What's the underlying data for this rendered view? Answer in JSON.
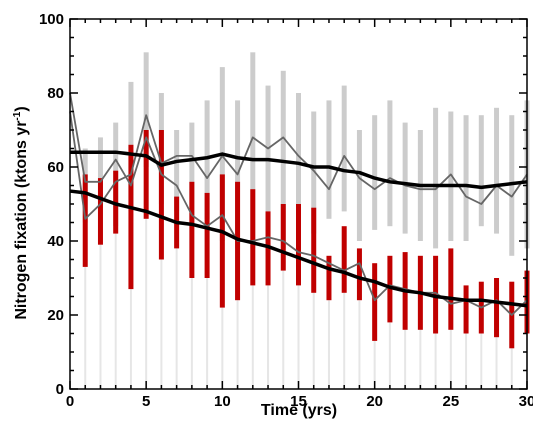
{
  "chart_data": {
    "type": "line",
    "xlabel": "Time (yrs)",
    "ylabel": "Nitrogen fixation (ktons yr",
    "ylabel_sup": "-1",
    "ylabel_close": ")",
    "xlim": [
      0,
      30
    ],
    "ylim": [
      0,
      100
    ],
    "xticks": [
      0,
      5,
      10,
      15,
      20,
      25,
      30
    ],
    "yticks": [
      0,
      20,
      40,
      60,
      80,
      100
    ],
    "xtick_labels": [
      "0",
      "5",
      "10",
      "15",
      "20",
      "25",
      "30"
    ],
    "ytick_labels": [
      "0",
      "20",
      "40",
      "60",
      "80",
      "100"
    ],
    "grid": false,
    "colors": {
      "upper_bars": "#cccccc",
      "lower_bars": "#c00000",
      "faint_bars": "#e6e6e6",
      "trend": "#000000",
      "realization": "#666666"
    },
    "series": [
      {
        "kind": "range-bars",
        "color": "#cccccc",
        "x": [
          1,
          2,
          3,
          4,
          5,
          6,
          7,
          8,
          9,
          10,
          11,
          12,
          13,
          14,
          15,
          16,
          17,
          18,
          19,
          20,
          21,
          22,
          23,
          24,
          25,
          26,
          27,
          28,
          29,
          30
        ],
        "low": [
          45,
          52,
          44,
          48,
          60,
          50,
          48,
          44,
          46,
          40,
          38,
          38,
          36,
          38,
          40,
          42,
          46,
          48,
          40,
          43,
          44,
          42,
          40,
          38,
          40,
          40,
          44,
          42,
          36,
          38
        ],
        "high": [
          65,
          68,
          72,
          83,
          91,
          80,
          70,
          72,
          78,
          87,
          78,
          91,
          82,
          86,
          80,
          75,
          78,
          82,
          70,
          74,
          78,
          72,
          70,
          76,
          75,
          74,
          74,
          76,
          74,
          78
        ]
      },
      {
        "kind": "range-bars",
        "color": "#e6e6e6",
        "x": [
          1,
          2,
          3,
          4,
          5,
          6,
          7,
          8,
          9,
          10,
          11,
          12,
          13,
          14,
          15,
          16,
          17,
          18,
          19,
          20,
          21,
          22,
          23,
          24,
          25,
          26,
          27,
          28,
          29,
          30
        ],
        "low": [
          0,
          0,
          0,
          0,
          0,
          0,
          0,
          0,
          0,
          0,
          0,
          0,
          0,
          0,
          0,
          0,
          0,
          0,
          0,
          0,
          0,
          0,
          0,
          0,
          0,
          0,
          0,
          0,
          0,
          0
        ],
        "high": [
          33,
          40,
          42,
          27,
          46,
          35,
          38,
          30,
          30,
          22,
          24,
          28,
          28,
          32,
          28,
          26,
          24,
          26,
          24,
          13,
          18,
          16,
          16,
          15,
          16,
          15,
          15,
          14,
          11,
          15
        ]
      },
      {
        "kind": "range-bars",
        "color": "#c00000",
        "x": [
          1,
          2,
          3,
          4,
          5,
          6,
          7,
          8,
          9,
          10,
          11,
          12,
          13,
          14,
          15,
          16,
          17,
          18,
          19,
          20,
          21,
          22,
          23,
          24,
          25,
          26,
          27,
          28,
          29,
          30
        ],
        "low": [
          33,
          39,
          42,
          27,
          46,
          35,
          38,
          30,
          30,
          22,
          24,
          28,
          28,
          32,
          28,
          26,
          24,
          26,
          24,
          13,
          18,
          16,
          16,
          15,
          16,
          15,
          15,
          14,
          11,
          15
        ],
        "high": [
          58,
          57,
          59,
          66,
          70,
          70,
          52,
          56,
          53,
          58,
          56,
          54,
          48,
          50,
          50,
          49,
          36,
          44,
          38,
          34,
          36,
          37,
          36,
          36,
          38,
          28,
          29,
          30,
          29,
          32
        ]
      },
      {
        "kind": "line",
        "color": "#666666",
        "x": [
          0,
          1,
          2,
          3,
          4,
          5,
          6,
          7,
          8,
          9,
          10,
          11,
          12,
          13,
          14,
          15,
          16,
          17,
          18,
          19,
          20,
          21,
          22,
          23,
          24,
          25,
          26,
          27,
          28,
          29,
          30
        ],
        "values": [
          75,
          46,
          50,
          56,
          58,
          74,
          61,
          63,
          63,
          57,
          63,
          58,
          68,
          65,
          68,
          63,
          59,
          54,
          63,
          57,
          54,
          57,
          55,
          54,
          54,
          58,
          52,
          50,
          55,
          52,
          58
        ]
      },
      {
        "kind": "line",
        "color": "#666666",
        "x": [
          0,
          1,
          2,
          3,
          4,
          5,
          6,
          7,
          8,
          9,
          10,
          11,
          12,
          13,
          14,
          15,
          16,
          17,
          18,
          19,
          20,
          21,
          22,
          23,
          24,
          25,
          26,
          27,
          28,
          29,
          30
        ],
        "values": [
          80,
          56,
          56,
          62,
          55,
          68,
          58,
          55,
          47,
          44,
          47,
          40,
          40,
          41,
          40,
          37,
          36,
          34,
          32,
          34,
          24,
          28,
          27,
          26,
          26,
          23,
          24,
          22,
          24,
          20,
          24
        ]
      },
      {
        "kind": "line",
        "color": "#000000",
        "x": [
          0,
          1,
          2,
          3,
          4,
          5,
          6,
          7,
          8,
          9,
          10,
          11,
          12,
          13,
          14,
          15,
          16,
          17,
          18,
          19,
          20,
          21,
          22,
          23,
          24,
          25,
          26,
          27,
          28,
          29,
          30
        ],
        "values": [
          64,
          64,
          64,
          64,
          63.5,
          63,
          60.5,
          61.5,
          62,
          62.5,
          63.5,
          62.5,
          62,
          62,
          61.5,
          61,
          60,
          60,
          59,
          58.5,
          57,
          56,
          55.5,
          55,
          55,
          55,
          55,
          54.5,
          55,
          55.5,
          56
        ]
      },
      {
        "kind": "line",
        "color": "#000000",
        "x": [
          0,
          1,
          2,
          3,
          4,
          5,
          6,
          7,
          8,
          9,
          10,
          11,
          12,
          13,
          14,
          15,
          16,
          17,
          18,
          19,
          20,
          21,
          22,
          23,
          24,
          25,
          26,
          27,
          28,
          29,
          30
        ],
        "values": [
          53.5,
          53,
          51.5,
          50,
          49,
          48,
          46.5,
          45,
          44.5,
          43.5,
          42.5,
          40.5,
          39.5,
          38.5,
          37,
          35.5,
          34,
          32.5,
          31.5,
          30,
          29,
          27.5,
          26.5,
          26,
          25,
          24.5,
          24,
          24,
          23.5,
          23,
          22.5
        ]
      }
    ]
  }
}
